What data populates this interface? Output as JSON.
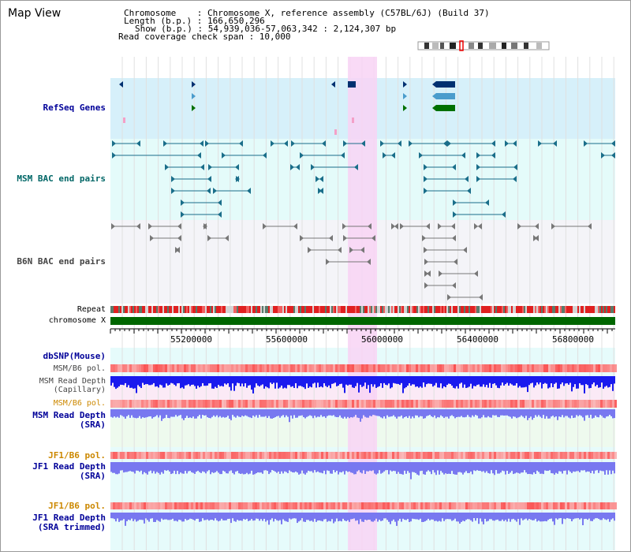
{
  "page": {
    "title": "Map View"
  },
  "info": {
    "chromosome": "Chromosome    : Chromosome X, reference assembly (C57BL/6J) (Build 37)",
    "length": "Length (b.p.) : 166,650,296",
    "show": "Show (b.p.) : 54,939,036-57,063,342 : 2,124,307 bp",
    "coverage": "Read coverage check span : 10,000"
  },
  "tracks": {
    "refseq": "RefSeq Genes",
    "msm_bac": "MSM BAC end pairs",
    "b6n_bac": "B6N BAC end pairs",
    "repeat": "Repeat",
    "chromosome": "chromosome X",
    "dbsnp": "dbSNP(Mouse)",
    "msm_pol": "MSM/B6 pol.",
    "msm_depth_cap": "MSM Read Depth\n(Capillary)",
    "msm_pol2": "MSM/B6 pol.",
    "msm_depth_sra": "MSM Read Depth\n(SRA)",
    "jf1_pol": "JF1/B6 pol.",
    "jf1_depth_sra": "JF1 Read Depth\n(SRA)",
    "jf1_pol2": "JF1/B6 pol.",
    "jf1_depth_trim": "JF1 Read Depth\n(SRA trimmed)"
  },
  "axis": {
    "ticks": [
      "55200000",
      "55600000",
      "56000000",
      "56400000",
      "56800000"
    ]
  },
  "colors": {
    "highlight": "#f8d4f4",
    "refseq_bg": "#d6f0fa",
    "bac_bg": "#e4fbfa",
    "gene_dark": "#003070",
    "gene_light": "#4a9ccc",
    "gene_green": "#007000",
    "chromosome_bar": "#006600",
    "label_blue": "#000099",
    "label_orange": "#cc8800",
    "depth_dark": "#1a1aee",
    "depth_light": "#7878f0"
  }
}
